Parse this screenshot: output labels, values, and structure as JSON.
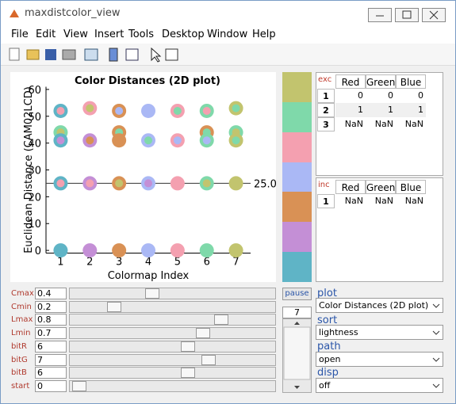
{
  "window": {
    "title": "maxdistcolor_view"
  },
  "menu": [
    "File",
    "Edit",
    "View",
    "Insert",
    "Tools",
    "Desktop",
    "Window",
    "Help"
  ],
  "chart_data": {
    "type": "scatter",
    "title": "Color Distances (2D plot)",
    "x_label": "Colormap Index",
    "y_label": "Euclidean Distance (CAM02LCD)",
    "xlim": [
      0.5,
      7.5
    ],
    "ylim": [
      -1,
      61
    ],
    "xticks": [
      1,
      2,
      3,
      4,
      5,
      6,
      7
    ],
    "yticks": [
      0,
      10,
      20,
      30,
      40,
      50,
      60
    ],
    "reference_line": 25.03,
    "points": [
      {
        "x": 1,
        "y": 52,
        "color": "#5fb4c6",
        "inner": "#f4a0b0"
      },
      {
        "x": 1,
        "y": 44,
        "color": "#7fd9aa",
        "inner": "#c2c46e"
      },
      {
        "x": 1,
        "y": 41,
        "color": "#5fb4c6",
        "inner": "#c48fd6"
      },
      {
        "x": 1,
        "y": 25,
        "color": "#5fb4c6",
        "inner": "#f4a0b0"
      },
      {
        "x": 1,
        "y": 0,
        "color": "#5fb4c6",
        "inner": "#5fb4c6"
      },
      {
        "x": 2,
        "y": 53,
        "color": "#f4a0b0",
        "inner": "#c2c46e"
      },
      {
        "x": 2,
        "y": 41,
        "color": "#c48fd6",
        "inner": "#d99155"
      },
      {
        "x": 2,
        "y": 25,
        "color": "#c48fd6",
        "inner": "#f4a0b0"
      },
      {
        "x": 2,
        "y": 0,
        "color": "#c48fd6",
        "inner": "#c48fd6"
      },
      {
        "x": 3,
        "y": 52,
        "color": "#d99155",
        "inner": "#aab8f5"
      },
      {
        "x": 3,
        "y": 44,
        "color": "#d99155",
        "inner": "#7fd9aa"
      },
      {
        "x": 3,
        "y": 41,
        "color": "#d99155",
        "inner": "#d99155"
      },
      {
        "x": 3,
        "y": 25,
        "color": "#d99155",
        "inner": "#c2c46e"
      },
      {
        "x": 3,
        "y": 0,
        "color": "#d99155",
        "inner": "#d99155"
      },
      {
        "x": 4,
        "y": 52,
        "color": "#aab8f5",
        "inner": "#aab8f5"
      },
      {
        "x": 4,
        "y": 41,
        "color": "#aab8f5",
        "inner": "#7fd9aa"
      },
      {
        "x": 4,
        "y": 25,
        "color": "#aab8f5",
        "inner": "#c48fd6"
      },
      {
        "x": 4,
        "y": 0,
        "color": "#aab8f5",
        "inner": "#aab8f5"
      },
      {
        "x": 5,
        "y": 52,
        "color": "#f4a0b0",
        "inner": "#7fd9aa"
      },
      {
        "x": 5,
        "y": 41,
        "color": "#f4a0b0",
        "inner": "#aab8f5"
      },
      {
        "x": 5,
        "y": 25,
        "color": "#f4a0b0",
        "inner": "#f4a0b0"
      },
      {
        "x": 5,
        "y": 0,
        "color": "#f4a0b0",
        "inner": "#f4a0b0"
      },
      {
        "x": 6,
        "y": 52,
        "color": "#7fd9aa",
        "inner": "#f4a0b0"
      },
      {
        "x": 6,
        "y": 44,
        "color": "#d99155",
        "inner": "#7fd9aa"
      },
      {
        "x": 6,
        "y": 41,
        "color": "#7fd9aa",
        "inner": "#aab8f5"
      },
      {
        "x": 6,
        "y": 25,
        "color": "#7fd9aa",
        "inner": "#c2c46e"
      },
      {
        "x": 6,
        "y": 0,
        "color": "#7fd9aa",
        "inner": "#7fd9aa"
      },
      {
        "x": 7,
        "y": 53,
        "color": "#c2c46e",
        "inner": "#7fd9aa"
      },
      {
        "x": 7,
        "y": 44,
        "color": "#7fd9aa",
        "inner": "#c2c46e"
      },
      {
        "x": 7,
        "y": 41,
        "color": "#c2c46e",
        "inner": "#7fd9aa"
      },
      {
        "x": 7,
        "y": 25,
        "color": "#c2c46e",
        "inner": "#c2c46e"
      },
      {
        "x": 7,
        "y": 0,
        "color": "#c2c46e",
        "inner": "#c2c46e"
      }
    ]
  },
  "swatches": [
    "#c2c46e",
    "#7fd9aa",
    "#f4a0b0",
    "#aab8f5",
    "#d99155",
    "#c48fd6",
    "#5fb4c6"
  ],
  "exc_table": {
    "label": "exc",
    "columns": [
      "Red",
      "Green",
      "Blue"
    ],
    "row_labels": [
      1,
      2,
      3
    ],
    "rows": [
      [
        0,
        0,
        0
      ],
      [
        1,
        1,
        1
      ],
      [
        "NaN",
        "NaN",
        "NaN"
      ]
    ]
  },
  "inc_table": {
    "label": "inc",
    "columns": [
      "Red",
      "Green",
      "Blue"
    ],
    "row_labels": [
      1
    ],
    "rows": [
      [
        "NaN",
        "NaN",
        "NaN"
      ]
    ]
  },
  "controls": [
    {
      "label": "Cmax",
      "value": 0.4
    },
    {
      "label": "Cmin",
      "value": 0.2
    },
    {
      "label": "Lmax",
      "value": 0.8
    },
    {
      "label": "Lmin",
      "value": 0.7
    },
    {
      "label": "bitR",
      "value": 6
    },
    {
      "label": "bitG",
      "value": 7
    },
    {
      "label": "bitB",
      "value": 6
    },
    {
      "label": "start",
      "value": 0
    }
  ],
  "pause": "pause",
  "index": 7,
  "options": [
    {
      "label": "plot",
      "value": "Color Distances (2D plot)"
    },
    {
      "label": "sort",
      "value": "lightness"
    },
    {
      "label": "path",
      "value": "open"
    },
    {
      "label": "disp",
      "value": "off"
    }
  ]
}
